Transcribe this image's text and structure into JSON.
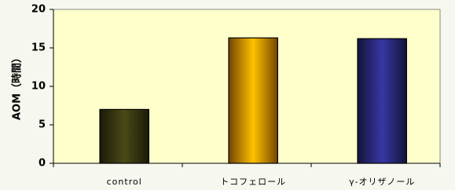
{
  "chart_data": {
    "type": "bar",
    "y_label": "AOM（時間）",
    "categories": [
      "control",
      "トコフェロール",
      "γ-オリザノール"
    ],
    "values": [
      7,
      16.3,
      16.2
    ],
    "colors": [
      "#3b3b12",
      "#ff9a00",
      "#2c2c82"
    ],
    "ylim": [
      0,
      20
    ],
    "yticks": [
      0,
      5,
      10,
      15,
      20
    ]
  }
}
